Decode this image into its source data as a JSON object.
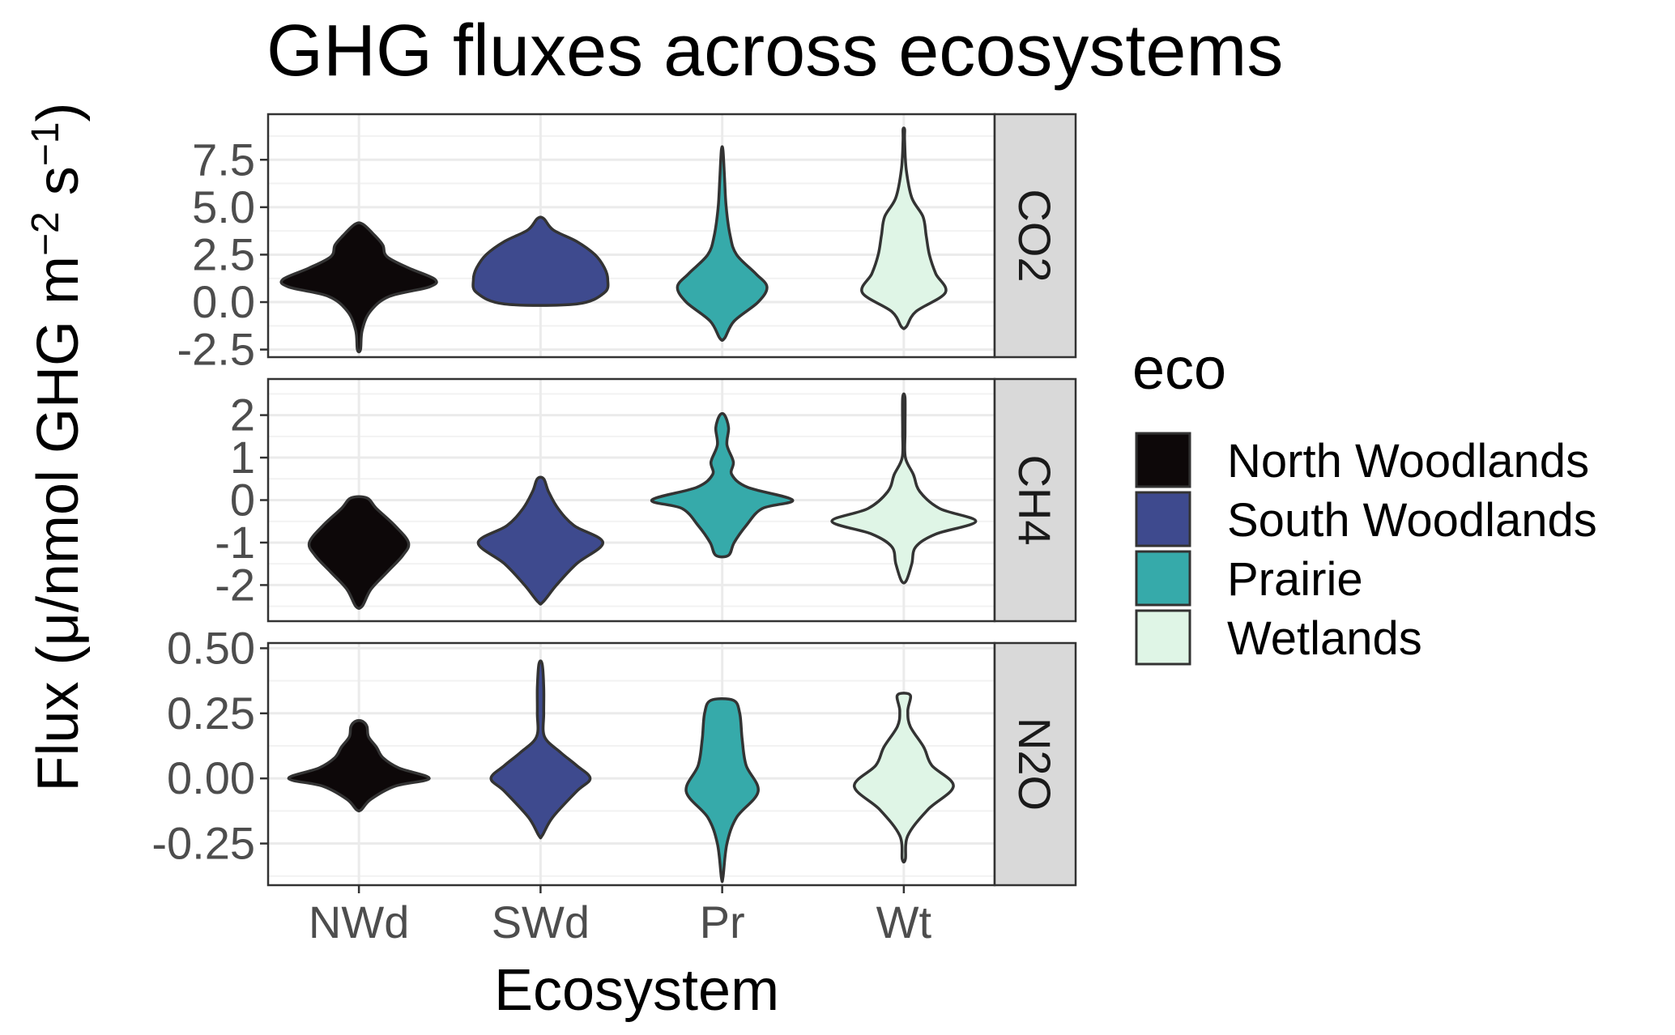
{
  "chart_data": {
    "type": "violin",
    "title": "GHG fluxes across ecosystems",
    "xlabel": "Ecosystem",
    "ylabel": {
      "prefix": "Flux (μ/nmol GHG m",
      "exp1": "−2",
      "middle": " s",
      "exp2": "−1",
      "suffix": ")"
    },
    "categories": [
      "NWd",
      "SWd",
      "Pr",
      "Wt"
    ],
    "legend": {
      "title": "eco",
      "position": "right",
      "entries": [
        {
          "label": "North Woodlands",
          "color": "#0d0809"
        },
        {
          "label": "South Woodlands",
          "color": "#3e4a8e"
        },
        {
          "label": "Prairie",
          "color": "#36aaaa"
        },
        {
          "label": "Wetlands",
          "color": "#dff5e6"
        }
      ]
    },
    "grid": true,
    "panels": [
      {
        "strip": "CO2",
        "ylim": [
          -2.9,
          9.9
        ],
        "yticks": [
          -2.5,
          0.0,
          2.5,
          5.0,
          7.5
        ],
        "ytick_labels": [
          "-2.5",
          "0.0",
          "2.5",
          "5.0",
          "7.5"
        ],
        "violins": [
          {
            "category": "NWd",
            "profile": [
              [
                -2.5,
                0.02
              ],
              [
                -1.5,
                0.04
              ],
              [
                -0.5,
                0.14
              ],
              [
                0.3,
                0.38
              ],
              [
                0.8,
                0.88
              ],
              [
                1.2,
                0.95
              ],
              [
                1.8,
                0.62
              ],
              [
                2.4,
                0.35
              ],
              [
                3.0,
                0.3
              ],
              [
                3.5,
                0.2
              ],
              [
                4.1,
                0.05
              ]
            ]
          },
          {
            "category": "SWd",
            "profile": [
              [
                -0.1,
                0.45
              ],
              [
                0.5,
                0.8
              ],
              [
                1.2,
                0.84
              ],
              [
                1.8,
                0.8
              ],
              [
                2.5,
                0.68
              ],
              [
                3.2,
                0.45
              ],
              [
                3.8,
                0.16
              ],
              [
                4.4,
                0.04
              ]
            ]
          },
          {
            "category": "Pr",
            "profile": [
              [
                -1.9,
                0.03
              ],
              [
                -1.0,
                0.15
              ],
              [
                0.0,
                0.45
              ],
              [
                0.8,
                0.56
              ],
              [
                1.5,
                0.42
              ],
              [
                2.5,
                0.18
              ],
              [
                3.5,
                0.1
              ],
              [
                5.0,
                0.05
              ],
              [
                6.5,
                0.03
              ],
              [
                8.0,
                0.01
              ]
            ]
          },
          {
            "category": "Wt",
            "profile": [
              [
                -1.3,
                0.03
              ],
              [
                -0.5,
                0.15
              ],
              [
                0.5,
                0.52
              ],
              [
                1.5,
                0.4
              ],
              [
                2.5,
                0.32
              ],
              [
                3.5,
                0.28
              ],
              [
                4.5,
                0.24
              ],
              [
                5.5,
                0.1
              ],
              [
                7.0,
                0.03
              ],
              [
                8.5,
                0.01
              ],
              [
                9.1,
                0.01
              ]
            ]
          }
        ]
      },
      {
        "strip": "CH4",
        "ylim": [
          -2.85,
          2.85
        ],
        "yticks": [
          -2,
          -1,
          0,
          1,
          2
        ],
        "ytick_labels": [
          "-2",
          "-1",
          "0",
          "1",
          "2"
        ],
        "violins": [
          {
            "category": "NWd",
            "profile": [
              [
                -2.5,
                0.04
              ],
              [
                -2.1,
                0.15
              ],
              [
                -1.7,
                0.35
              ],
              [
                -1.3,
                0.55
              ],
              [
                -1.0,
                0.62
              ],
              [
                -0.6,
                0.45
              ],
              [
                -0.2,
                0.22
              ],
              [
                0.05,
                0.1
              ]
            ]
          },
          {
            "category": "SWd",
            "profile": [
              [
                -2.4,
                0.03
              ],
              [
                -2.0,
                0.2
              ],
              [
                -1.5,
                0.45
              ],
              [
                -1.0,
                0.78
              ],
              [
                -0.6,
                0.42
              ],
              [
                -0.2,
                0.22
              ],
              [
                0.2,
                0.1
              ],
              [
                0.5,
                0.04
              ]
            ]
          },
          {
            "category": "Pr",
            "profile": [
              [
                -1.3,
                0.08
              ],
              [
                -1.0,
                0.15
              ],
              [
                -0.6,
                0.3
              ],
              [
                -0.2,
                0.5
              ],
              [
                0.0,
                0.88
              ],
              [
                0.3,
                0.32
              ],
              [
                0.6,
                0.12
              ],
              [
                0.9,
                0.14
              ],
              [
                1.3,
                0.06
              ],
              [
                1.7,
                0.08
              ],
              [
                2.0,
                0.03
              ]
            ]
          },
          {
            "category": "Wt",
            "profile": [
              [
                -1.9,
                0.03
              ],
              [
                -1.5,
                0.1
              ],
              [
                -1.1,
                0.15
              ],
              [
                -0.8,
                0.4
              ],
              [
                -0.5,
                0.9
              ],
              [
                -0.2,
                0.45
              ],
              [
                0.2,
                0.2
              ],
              [
                0.6,
                0.12
              ],
              [
                1.0,
                0.02
              ],
              [
                1.6,
                0.015
              ],
              [
                2.4,
                0.015
              ]
            ]
          }
        ]
      },
      {
        "strip": "N2O",
        "ylim": [
          -0.41,
          0.52
        ],
        "yticks": [
          -0.25,
          0.0,
          0.25,
          0.5
        ],
        "ytick_labels": [
          "-0.25",
          "0.00",
          "0.25",
          "0.50"
        ],
        "violins": [
          {
            "category": "NWd",
            "profile": [
              [
                -0.12,
                0.03
              ],
              [
                -0.08,
                0.15
              ],
              [
                -0.03,
                0.45
              ],
              [
                0.0,
                0.88
              ],
              [
                0.04,
                0.5
              ],
              [
                0.08,
                0.3
              ],
              [
                0.12,
                0.22
              ],
              [
                0.16,
                0.12
              ],
              [
                0.2,
                0.1
              ],
              [
                0.22,
                0.04
              ]
            ]
          },
          {
            "category": "SWd",
            "profile": [
              [
                -0.22,
                0.02
              ],
              [
                -0.15,
                0.15
              ],
              [
                -0.05,
                0.45
              ],
              [
                0.0,
                0.62
              ],
              [
                0.05,
                0.45
              ],
              [
                0.1,
                0.25
              ],
              [
                0.16,
                0.05
              ],
              [
                0.25,
                0.04
              ],
              [
                0.35,
                0.04
              ],
              [
                0.44,
                0.02
              ]
            ]
          },
          {
            "category": "Pr",
            "profile": [
              [
                -0.38,
                0.01
              ],
              [
                -0.25,
                0.06
              ],
              [
                -0.15,
                0.18
              ],
              [
                -0.05,
                0.45
              ],
              [
                0.05,
                0.3
              ],
              [
                0.15,
                0.25
              ],
              [
                0.25,
                0.22
              ],
              [
                0.3,
                0.14
              ]
            ]
          },
          {
            "category": "Wt",
            "profile": [
              [
                -0.31,
                0.02
              ],
              [
                -0.22,
                0.05
              ],
              [
                -0.12,
                0.3
              ],
              [
                -0.03,
                0.62
              ],
              [
                0.05,
                0.35
              ],
              [
                0.12,
                0.25
              ],
              [
                0.2,
                0.08
              ],
              [
                0.26,
                0.05
              ],
              [
                0.32,
                0.08
              ]
            ]
          }
        ]
      }
    ]
  }
}
